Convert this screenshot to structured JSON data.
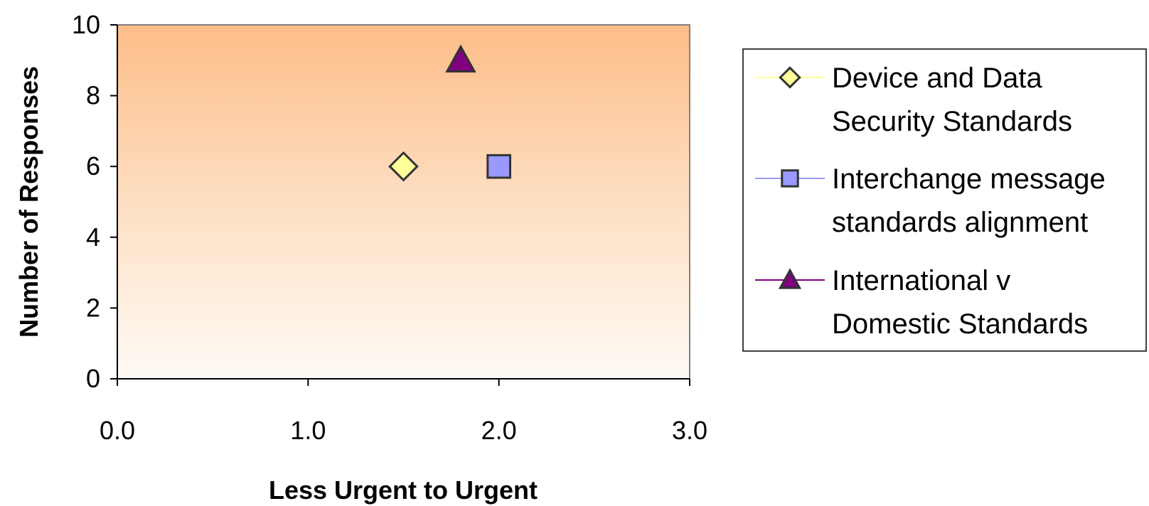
{
  "chart_data": {
    "type": "scatter",
    "title": "",
    "xlabel": "Less Urgent to Urgent",
    "ylabel": "Number of Responses",
    "xlim": [
      0,
      3
    ],
    "ylim": [
      0,
      10
    ],
    "x_ticks": [
      "0.0",
      "1.0",
      "2.0",
      "3.0"
    ],
    "y_ticks": [
      "0",
      "2",
      "4",
      "6",
      "8",
      "10"
    ],
    "grid": false,
    "background": "vertical gradient, light orange at top to near-white at bottom",
    "legend_position": "right",
    "series": [
      {
        "name": "Device and Data Security Standards",
        "name_lines": [
          "Device and Data",
          "Security Standards"
        ],
        "marker": "diamond",
        "color": "#ffff99",
        "line_color": "#ffff99",
        "points": [
          {
            "x": 1.5,
            "y": 6
          }
        ]
      },
      {
        "name": "Interchange message standards alignment",
        "name_lines": [
          "Interchange message",
          "standards alignment"
        ],
        "marker": "square",
        "color": "#9999ff",
        "line_color": "#9999ff",
        "points": [
          {
            "x": 2.0,
            "y": 6
          }
        ]
      },
      {
        "name": "International v Domestic Standards",
        "name_lines": [
          "International v",
          "Domestic Standards"
        ],
        "marker": "triangle",
        "color": "#800080",
        "line_color": "#800080",
        "points": [
          {
            "x": 1.8,
            "y": 9
          }
        ]
      }
    ]
  }
}
